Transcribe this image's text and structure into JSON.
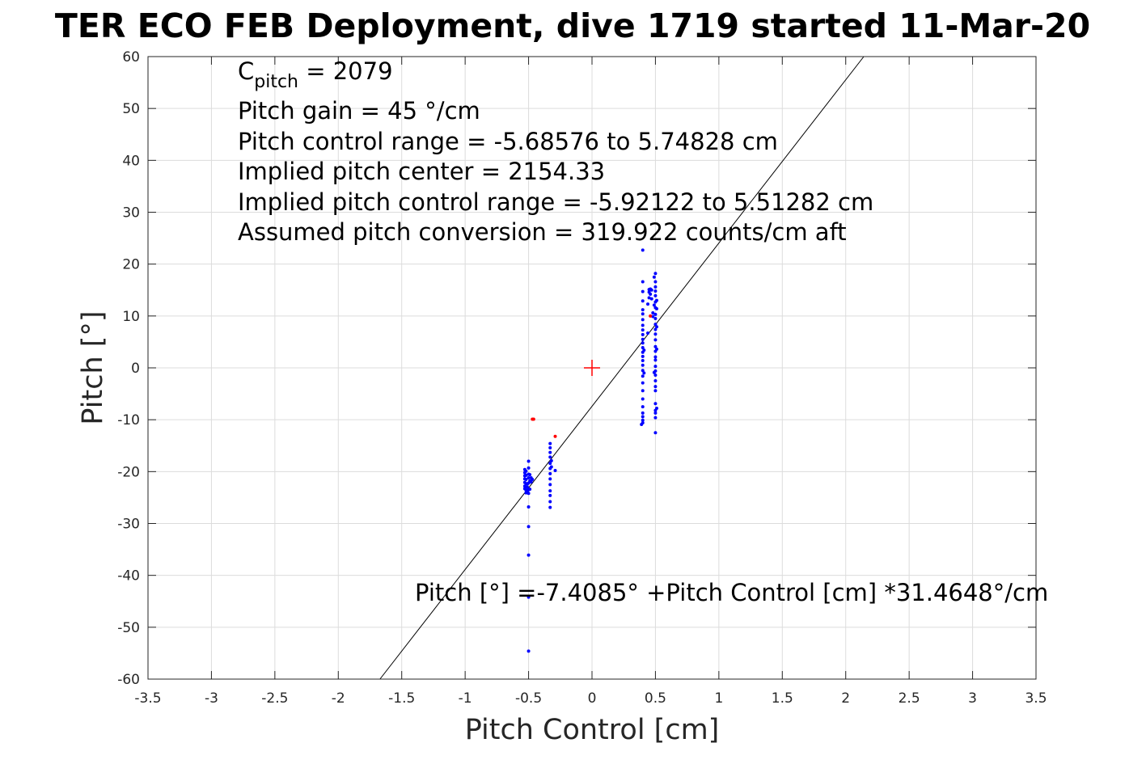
{
  "chart_data": {
    "type": "scatter",
    "title": "TER ECO FEB Deployment, dive 1719 started 11-Mar-20",
    "xlabel": "Pitch Control [cm]",
    "ylabel": "Pitch [°]",
    "xlim": [
      -3.5,
      3.5
    ],
    "ylim": [
      -60,
      60
    ],
    "xticks": [
      -3.5,
      -3,
      -2.5,
      -2,
      -1.5,
      -1,
      -0.5,
      0,
      0.5,
      1,
      1.5,
      2,
      2.5,
      3,
      3.5
    ],
    "xtick_labels": [
      "-3.5",
      "-3",
      "-2.5",
      "-2",
      "-1.5",
      "-1",
      "-0.5",
      "0",
      "0.5",
      "1",
      "1.5",
      "2",
      "2.5",
      "3",
      "3.5"
    ],
    "yticks": [
      60,
      50,
      40,
      30,
      20,
      10,
      0,
      -10,
      -20,
      -30,
      -40,
      -50,
      -60
    ],
    "ytick_labels": [
      "60",
      "50",
      "40",
      "30",
      "20",
      "10",
      "0",
      "-10",
      "-20",
      "-30",
      "-40",
      "-50",
      "-60"
    ],
    "grid": true,
    "colors": {
      "blue": "#0000ff",
      "red": "#ff0000",
      "fit": "#000000",
      "grid": "#dcdcdc",
      "axis": "#262626"
    },
    "fit_line": {
      "intercept": -7.4085,
      "slope": 31.4648
    },
    "center_marker": {
      "x": 0,
      "y": 0,
      "color": "#ff0000",
      "shape": "plus"
    },
    "annotations": {
      "c_pitch": {
        "base": "C",
        "subscript": "pitch",
        "rest": " = 2079"
      },
      "lines": [
        "Pitch gain = 45 °/cm",
        "Pitch control range = -5.68576 to 5.74828 cm",
        "Implied pitch center = 2154.33",
        "Implied pitch control range = -5.92122 to 5.51282 cm",
        "Assumed pitch conversion = 319.922 counts/cm aft"
      ],
      "fit_equation": "Pitch [°] =-7.4085° +Pitch Control [cm] *31.4648°/cm"
    },
    "series": [
      {
        "color": "#0000ff",
        "points": [
          [
            0.4,
            22.7
          ],
          [
            0.4,
            16.6
          ],
          [
            0.4,
            14.7
          ],
          [
            0.4,
            12.9
          ],
          [
            0.4,
            11.2
          ],
          [
            0.4,
            10.4
          ],
          [
            0.4,
            9.3
          ],
          [
            0.4,
            8.2
          ],
          [
            0.4,
            7.3
          ],
          [
            0.4,
            6.4
          ],
          [
            0.4,
            5.5
          ],
          [
            0.4,
            4.8
          ],
          [
            0.4,
            3.9
          ],
          [
            0.4,
            3.0
          ],
          [
            0.4,
            2.2
          ],
          [
            0.4,
            1.4
          ],
          [
            0.4,
            0.5
          ],
          [
            0.4,
            -0.5
          ],
          [
            0.4,
            -1.6
          ],
          [
            0.4,
            -2.9
          ],
          [
            0.4,
            -4.4
          ],
          [
            0.4,
            -6.0
          ],
          [
            0.4,
            -7.5
          ],
          [
            0.4,
            -8.7
          ],
          [
            0.4,
            -9.4
          ],
          [
            0.4,
            -10.1
          ],
          [
            0.4,
            -10.6
          ],
          [
            0.39,
            -10.9
          ],
          [
            0.41,
            3.4
          ],
          [
            0.41,
            -1.0
          ],
          [
            0.44,
            12.3
          ],
          [
            0.44,
            6.7
          ],
          [
            0.45,
            15.1
          ],
          [
            0.45,
            14.6
          ],
          [
            0.45,
            13.5
          ],
          [
            0.46,
            15.2
          ],
          [
            0.46,
            14.2
          ],
          [
            0.47,
            13.3
          ],
          [
            0.47,
            15.0
          ],
          [
            0.48,
            10.6
          ],
          [
            0.48,
            9.9
          ],
          [
            0.5,
            18.2
          ],
          [
            0.5,
            16.6
          ],
          [
            0.5,
            15.6
          ],
          [
            0.5,
            14.8
          ],
          [
            0.5,
            13.9
          ],
          [
            0.5,
            12.7
          ],
          [
            0.5,
            11.6
          ],
          [
            0.5,
            10.3
          ],
          [
            0.5,
            9.5
          ],
          [
            0.5,
            8.4
          ],
          [
            0.5,
            7.4
          ],
          [
            0.5,
            6.5
          ],
          [
            0.5,
            5.4
          ],
          [
            0.5,
            4.1
          ],
          [
            0.5,
            3.2
          ],
          [
            0.5,
            2.1
          ],
          [
            0.5,
            1.5
          ],
          [
            0.5,
            0.3
          ],
          [
            0.5,
            -0.6
          ],
          [
            0.5,
            -1.4
          ],
          [
            0.5,
            -2.5
          ],
          [
            0.5,
            -3.6
          ],
          [
            0.5,
            -4.4
          ],
          [
            0.5,
            -6.9
          ],
          [
            0.5,
            -8.2
          ],
          [
            0.5,
            -8.7
          ],
          [
            0.5,
            -9.6
          ],
          [
            0.5,
            -12.5
          ],
          [
            0.51,
            13.0
          ],
          [
            0.51,
            11.4
          ],
          [
            0.51,
            7.9
          ],
          [
            0.51,
            3.6
          ],
          [
            0.51,
            -7.8
          ],
          [
            0.49,
            17.5
          ],
          [
            0.49,
            12.1
          ],
          [
            0.49,
            -0.9
          ],
          [
            -0.53,
            -19.6
          ],
          [
            -0.53,
            -20.2
          ],
          [
            -0.53,
            -20.8
          ],
          [
            -0.53,
            -21.4
          ],
          [
            -0.53,
            -22.1
          ],
          [
            -0.53,
            -22.8
          ],
          [
            -0.53,
            -23.3
          ],
          [
            -0.52,
            -19.9
          ],
          [
            -0.52,
            -20.7
          ],
          [
            -0.52,
            -21.5
          ],
          [
            -0.52,
            -22.3
          ],
          [
            -0.52,
            -23.0
          ],
          [
            -0.52,
            -23.6
          ],
          [
            -0.52,
            -24.1
          ],
          [
            -0.51,
            -22.4
          ],
          [
            -0.51,
            -23.0
          ],
          [
            -0.51,
            -23.8
          ],
          [
            -0.5,
            -18.0
          ],
          [
            -0.5,
            -19.3
          ],
          [
            -0.5,
            -20.5
          ],
          [
            -0.5,
            -21.2
          ],
          [
            -0.5,
            -22.2
          ],
          [
            -0.5,
            -23.5
          ],
          [
            -0.5,
            -24.2
          ],
          [
            -0.5,
            -26.8
          ],
          [
            -0.5,
            -30.6
          ],
          [
            -0.5,
            -36.1
          ],
          [
            -0.5,
            -44.2
          ],
          [
            -0.5,
            -54.6
          ],
          [
            -0.49,
            -20.6
          ],
          [
            -0.49,
            -21.8
          ],
          [
            -0.49,
            -23.4
          ],
          [
            -0.48,
            -21.2
          ],
          [
            -0.48,
            -22.0
          ],
          [
            -0.47,
            -21.5
          ],
          [
            -0.33,
            -14.6
          ],
          [
            -0.33,
            -15.4
          ],
          [
            -0.33,
            -16.3
          ],
          [
            -0.33,
            -17.2
          ],
          [
            -0.33,
            -18.4
          ],
          [
            -0.33,
            -19.4
          ],
          [
            -0.33,
            -20.4
          ],
          [
            -0.33,
            -21.4
          ],
          [
            -0.33,
            -22.5
          ],
          [
            -0.33,
            -23.7
          ],
          [
            -0.33,
            -24.6
          ],
          [
            -0.33,
            -25.8
          ],
          [
            -0.33,
            -26.9
          ],
          [
            -0.32,
            -17.9
          ],
          [
            -0.32,
            -19.1
          ],
          [
            -0.29,
            -19.8
          ]
        ]
      },
      {
        "color": "#ff0000",
        "points": [
          [
            -0.47,
            -9.9
          ],
          [
            -0.46,
            -9.9
          ],
          [
            -0.29,
            -13.2
          ],
          [
            0.46,
            10.0
          ]
        ]
      }
    ]
  }
}
